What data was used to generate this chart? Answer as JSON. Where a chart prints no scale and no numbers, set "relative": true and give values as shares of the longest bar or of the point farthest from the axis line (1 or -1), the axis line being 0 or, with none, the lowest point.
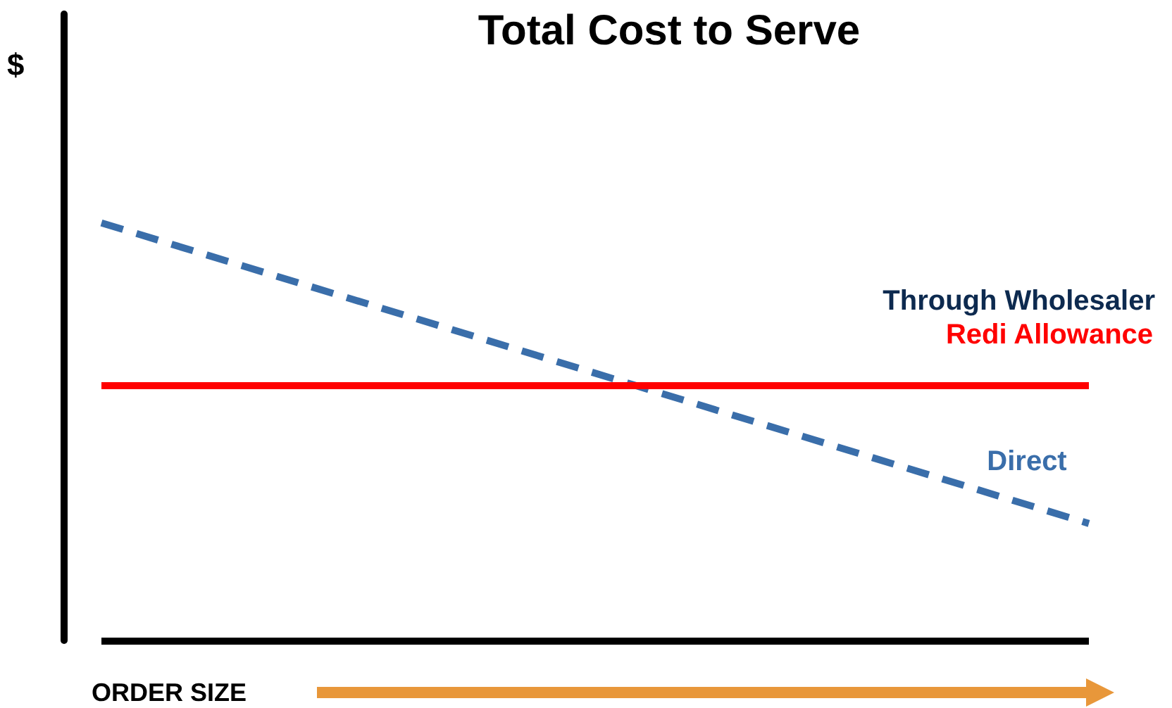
{
  "chart_data": {
    "type": "line",
    "title": "Total Cost to Serve",
    "xlabel": "ORDER SIZE",
    "ylabel": "$",
    "relative": true,
    "categories": [
      null,
      null
    ],
    "series": [
      {
        "name": "Direct",
        "color": "#3a6eaa",
        "values": [
          1,
          0.28
        ],
        "line_style": "dashed"
      },
      {
        "name": "Redi Allowance",
        "color": "#ff0000",
        "values": [
          0.61,
          0.61
        ],
        "line_style": "solid"
      }
    ],
    "ref_lines": [
      {
        "axis": "y",
        "value": 0,
        "color": "#000000"
      }
    ],
    "annotations": [
      "Through Wholesaler"
    ],
    "legend": false,
    "grid": false,
    "marker": "none"
  }
}
